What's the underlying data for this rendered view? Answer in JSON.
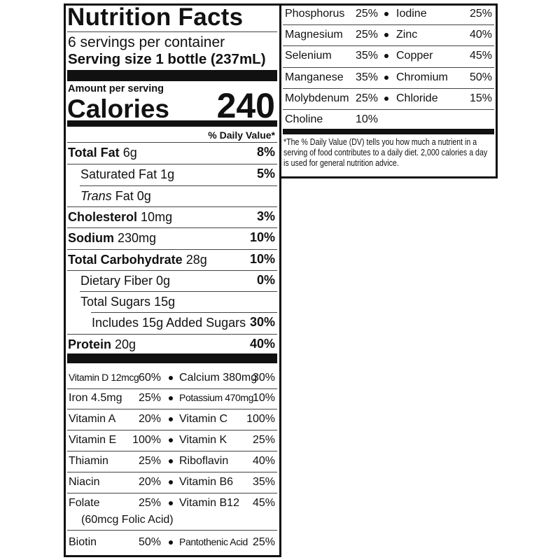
{
  "header": {
    "title": "Nutrition Facts",
    "servings": "6 servings per container",
    "serving_size": "Serving size 1 bottle (237mL)"
  },
  "calories": {
    "amount_per_serving": "Amount per serving",
    "label": "Calories",
    "value": "240"
  },
  "daily_value_header": "% Daily Value*",
  "nutrients": [
    {
      "name": "Total Fat",
      "amount": "6g",
      "dv": "8%"
    },
    {
      "name": "Saturated Fat",
      "amount": "1g",
      "dv": "5%"
    },
    {
      "name_italic": "Trans",
      "name": "Fat",
      "amount": "0g"
    },
    {
      "name": "Cholesterol",
      "amount": "10mg",
      "dv": "3%"
    },
    {
      "name": "Sodium",
      "amount": "230mg",
      "dv": "10%"
    },
    {
      "name": "Total Carbohydrate",
      "amount": "28g",
      "dv": "10%"
    },
    {
      "name": "Dietary Fiber",
      "amount": "0g",
      "dv": "0%"
    },
    {
      "name": "Total Sugars",
      "amount": "15g"
    },
    {
      "name": "Includes 15g Added Sugars",
      "dv": "30%"
    },
    {
      "name": "Protein",
      "amount": "20g",
      "dv": "40%"
    }
  ],
  "vitamins": [
    {
      "left": {
        "name": "Vitamin D 12mcg",
        "dv": "60%"
      },
      "right": {
        "name": "Calcium 380mg",
        "dv": "30%"
      }
    },
    {
      "left": {
        "name": "Iron 4.5mg",
        "dv": "25%"
      },
      "right": {
        "name": "Potassium 470mg",
        "dv": "10%"
      }
    },
    {
      "left": {
        "name": "Vitamin A",
        "dv": "20%"
      },
      "right": {
        "name": "Vitamin C",
        "dv": "100%"
      }
    },
    {
      "left": {
        "name": "Vitamin E",
        "dv": "100%"
      },
      "right": {
        "name": "Vitamin K",
        "dv": "25%"
      }
    },
    {
      "left": {
        "name": "Thiamin",
        "dv": "25%"
      },
      "right": {
        "name": "Riboflavin",
        "dv": "40%"
      }
    },
    {
      "left": {
        "name": "Niacin",
        "dv": "20%"
      },
      "right": {
        "name": "Vitamin B6",
        "dv": "35%"
      }
    },
    {
      "left": {
        "name": "Folate",
        "dv": "25%",
        "note": "(60mcg Folic Acid)"
      },
      "right": {
        "name": "Vitamin B12",
        "dv": "45%"
      }
    },
    {
      "left": {
        "name": "Biotin",
        "dv": "50%"
      },
      "right": {
        "name": "Pantothenic Acid",
        "dv": "25%"
      }
    }
  ],
  "minerals": [
    {
      "left": {
        "name": "Phosphorus",
        "dv": "25%"
      },
      "right": {
        "name": "Iodine",
        "dv": "25%"
      }
    },
    {
      "left": {
        "name": "Magnesium",
        "dv": "25%"
      },
      "right": {
        "name": "Zinc",
        "dv": "40%"
      }
    },
    {
      "left": {
        "name": "Selenium",
        "dv": "35%"
      },
      "right": {
        "name": "Copper",
        "dv": "45%"
      }
    },
    {
      "left": {
        "name": "Manganese",
        "dv": "35%"
      },
      "right": {
        "name": "Chromium",
        "dv": "50%"
      }
    },
    {
      "left": {
        "name": "Molybdenum",
        "dv": "25%"
      },
      "right": {
        "name": "Chloride",
        "dv": "15%"
      }
    },
    {
      "left": {
        "name": "Choline",
        "dv": "10%"
      }
    }
  ],
  "footnote": "*The % Daily Value (DV) tells you how much a nutrient in a serving of food contributes to a daily diet. 2,000 calories a day is used for general nutrition advice."
}
